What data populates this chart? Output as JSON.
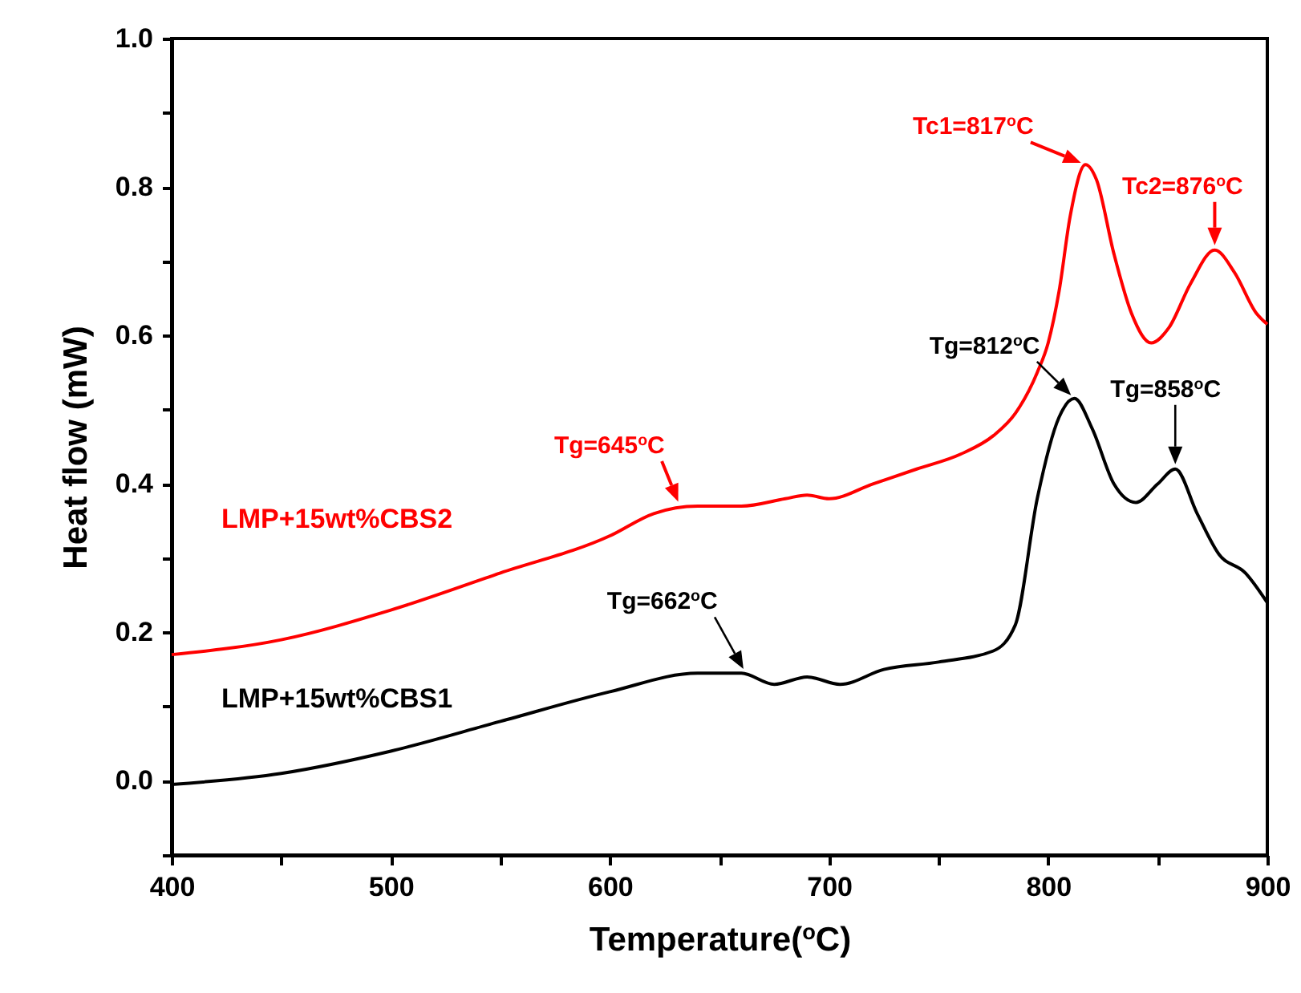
{
  "chart_data": {
    "type": "line",
    "xlabel": "Temperature($^{o}$C)",
    "ylabel": "Heat flow (mW)",
    "xlim": [
      400,
      900
    ],
    "xticks": [
      400,
      {
        "value": 450,
        "label": null
      },
      500,
      {
        "value": 550,
        "label": null
      },
      600,
      {
        "value": 650,
        "label": null
      },
      700,
      {
        "value": 750,
        "label": null
      },
      800,
      {
        "value": 850,
        "label": null
      },
      900
    ],
    "ylim": [
      -0.1,
      1.0
    ],
    "yticks": [
      {
        "value": -0.1,
        "label": null
      },
      {
        "value": 0,
        "label": "0.0"
      },
      {
        "value": 0.1,
        "label": null
      },
      0.2,
      {
        "value": 0.3,
        "label": null
      },
      0.4,
      {
        "value": 0.5,
        "label": null
      },
      0.6,
      {
        "value": 0.7,
        "label": null
      },
      0.8,
      {
        "value": 0.9,
        "label": null
      },
      {
        "value": 1,
        "label": "1.0"
      }
    ],
    "legend": false,
    "grid": false,
    "marker": "none",
    "line_style": "solid",
    "series": [
      {
        "name": "LMP+15wt%CBS2",
        "color": "#ff0000",
        "x": [
          400,
          450,
          500,
          550,
          600,
          620,
          640,
          660,
          680,
          690,
          700,
          720,
          740,
          760,
          775,
          785,
          795,
          800,
          805,
          810,
          817,
          822,
          830,
          838,
          847,
          855,
          865,
          876,
          885,
          895,
          900
        ],
        "values": [
          0.17,
          0.19,
          0.23,
          0.28,
          0.33,
          0.36,
          0.37,
          0.37,
          0.38,
          0.385,
          0.38,
          0.4,
          0.42,
          0.44,
          0.465,
          0.495,
          0.55,
          0.59,
          0.66,
          0.76,
          0.83,
          0.81,
          0.71,
          0.63,
          0.59,
          0.61,
          0.67,
          0.715,
          0.685,
          0.63,
          0.615
        ]
      },
      {
        "name": "LMP+15wt%CBS1",
        "color": "#000000",
        "x": [
          400,
          450,
          500,
          550,
          600,
          640,
          660,
          675,
          690,
          705,
          725,
          750,
          775,
          785,
          795,
          805,
          812,
          820,
          830,
          840,
          850,
          858,
          868,
          878,
          890,
          900
        ],
        "values": [
          -0.005,
          0.01,
          0.04,
          0.08,
          0.12,
          0.145,
          0.145,
          0.13,
          0.14,
          0.13,
          0.15,
          0.16,
          0.175,
          0.21,
          0.38,
          0.49,
          0.515,
          0.475,
          0.4,
          0.375,
          0.4,
          0.42,
          0.36,
          0.305,
          0.28,
          0.24
        ]
      }
    ],
    "annotations": [
      {
        "text": "Tg=645$^{o}$C",
        "x": 632,
        "y": 0.37
      },
      {
        "text": "Tc1=817$^{o}$C",
        "x": 817,
        "y": 0.83
      },
      {
        "text": "Tc2=876$^{o}$C",
        "x": 876,
        "y": 0.715
      },
      {
        "text": "Tg=662$^{o}$C",
        "x": 662,
        "y": 0.145
      },
      {
        "text": "Tg=812$^{o}$C",
        "x": 812,
        "y": 0.515
      },
      {
        "text": "Tg=858$^{o}$C",
        "x": 858,
        "y": 0.42
      }
    ]
  }
}
